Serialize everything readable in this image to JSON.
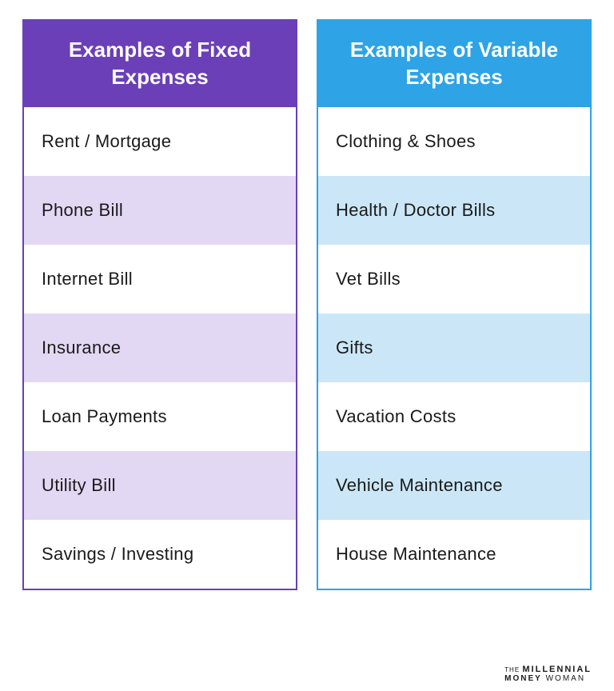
{
  "columns": [
    {
      "title": "Examples of Fixed Expenses",
      "header_bg": "#6b3fb8",
      "border_color": "#6b3fb8",
      "row_bg_odd": "#ffffff",
      "row_bg_even": "#e3d8f3",
      "rows": [
        "Rent / Mortgage",
        "Phone Bill",
        "Internet Bill",
        "Insurance",
        "Loan Payments",
        "Utility Bill",
        "Savings / Investing"
      ]
    },
    {
      "title": "Examples of Variable Expenses",
      "header_bg": "#2ea3e6",
      "border_color": "#2ea3e6",
      "row_bg_odd": "#ffffff",
      "row_bg_even": "#cbe7f7",
      "rows": [
        "Clothing & Shoes",
        "Health / Doctor Bills",
        "Vet Bills",
        "Gifts",
        "Vacation Costs",
        "Vehicle Maintenance",
        "House Maintenance"
      ]
    }
  ],
  "attribution": {
    "the": "THE",
    "brand1": "MILLENNIAL",
    "brand2a": "MONEY",
    "brand2b": "WOMAN"
  },
  "layout": {
    "header_fontsize": 26,
    "row_fontsize": 22,
    "row_padding_v": 30,
    "row_padding_h": 22
  }
}
